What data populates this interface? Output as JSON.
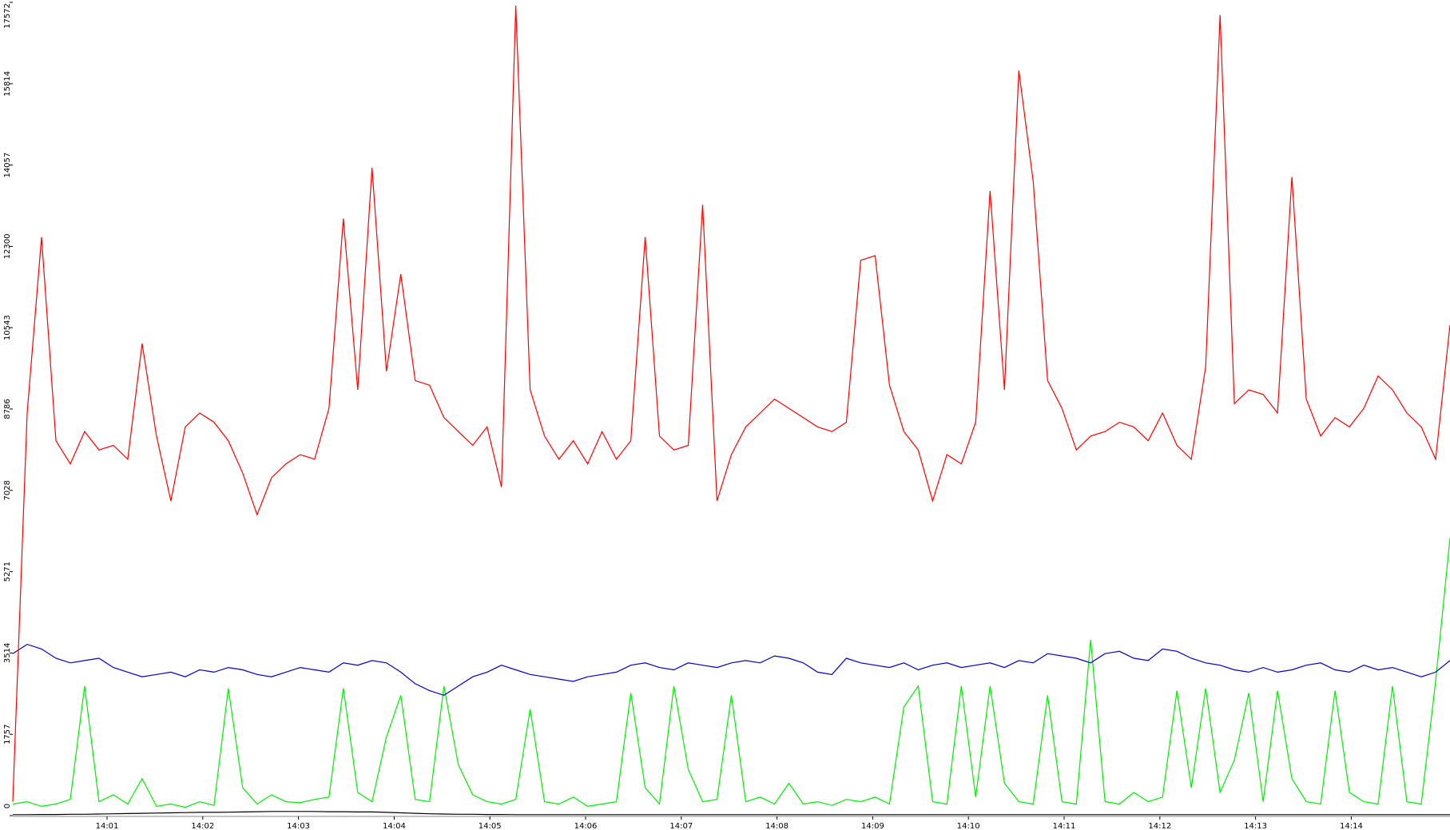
{
  "chart_data": {
    "type": "line",
    "ylim": [
      0,
      17572
    ],
    "yticks": [
      0,
      1757,
      3514,
      5271,
      7028,
      8786,
      10543,
      12300,
      14057,
      15814,
      17572
    ],
    "x_labels": [
      "14:01",
      "14:02",
      "14:03",
      "14:04",
      "14:05",
      "14:06",
      "14:07",
      "14:08",
      "14:09",
      "14:10",
      "14:11",
      "14:12",
      "14:13",
      "14:14"
    ],
    "series": [
      {
        "color": "#ff0000",
        "values": [
          300,
          8700,
          12500,
          8100,
          7600,
          8300,
          7900,
          8000,
          7700,
          10200,
          8200,
          6800,
          8400,
          8700,
          8500,
          8100,
          7400,
          6500,
          7300,
          7600,
          7800,
          7700,
          8800,
          12900,
          9200,
          14000,
          9600,
          11700,
          9400,
          9300,
          8600,
          8300,
          8000,
          8400,
          7100,
          17500,
          9200,
          8200,
          7700,
          8100,
          7600,
          8300,
          7700,
          8100,
          12500,
          8200,
          7900,
          8000,
          13200,
          6800,
          7800,
          8400,
          8700,
          9000,
          8800,
          8600,
          8400,
          8300,
          8500,
          12000,
          12100,
          9300,
          8300,
          7900,
          6800,
          7800,
          7600,
          8500,
          13500,
          9200,
          16100,
          13700,
          9400,
          8800,
          7900,
          8200,
          8300,
          8500,
          8400,
          8100,
          8700,
          8000,
          7700,
          9700,
          17300,
          8900,
          9200,
          9100,
          8700,
          13800,
          9000,
          8200,
          8600,
          8400,
          8800,
          9500,
          9200,
          8700,
          8400,
          7700,
          10600
        ]
      },
      {
        "color": "#0000cc",
        "values": [
          3500,
          3700,
          3600,
          3400,
          3300,
          3350,
          3400,
          3200,
          3100,
          3000,
          3050,
          3100,
          3000,
          3150,
          3100,
          3200,
          3150,
          3050,
          3000,
          3100,
          3200,
          3150,
          3100,
          3300,
          3250,
          3350,
          3300,
          3100,
          2850,
          2700,
          2600,
          2800,
          3000,
          3100,
          3250,
          3150,
          3050,
          3000,
          2950,
          2900,
          3000,
          3050,
          3100,
          3250,
          3300,
          3200,
          3150,
          3300,
          3250,
          3200,
          3300,
          3350,
          3300,
          3450,
          3400,
          3300,
          3100,
          3050,
          3400,
          3300,
          3250,
          3200,
          3300,
          3150,
          3250,
          3300,
          3200,
          3250,
          3300,
          3200,
          3350,
          3300,
          3500,
          3450,
          3400,
          3300,
          3500,
          3550,
          3400,
          3350,
          3600,
          3550,
          3400,
          3300,
          3250,
          3150,
          3100,
          3200,
          3100,
          3150,
          3250,
          3300,
          3150,
          3100,
          3250,
          3150,
          3200,
          3100,
          3000,
          3100,
          3350
        ]
      },
      {
        "color": "#00ee00",
        "values": [
          250,
          300,
          200,
          250,
          350,
          2800,
          300,
          450,
          250,
          800,
          200,
          250,
          180,
          300,
          220,
          2750,
          600,
          250,
          450,
          300,
          280,
          350,
          400,
          2750,
          500,
          300,
          1700,
          2600,
          350,
          300,
          2800,
          1100,
          450,
          300,
          250,
          350,
          2300,
          300,
          250,
          400,
          200,
          250,
          300,
          2650,
          600,
          250,
          2800,
          1000,
          300,
          350,
          2600,
          300,
          400,
          250,
          700,
          250,
          300,
          220,
          350,
          300,
          400,
          250,
          2350,
          2800,
          300,
          250,
          2800,
          400,
          2800,
          700,
          300,
          250,
          2600,
          300,
          250,
          3800,
          300,
          250,
          500,
          300,
          400,
          2700,
          600,
          2750,
          500,
          1200,
          2650,
          300,
          2700,
          800,
          300,
          250,
          2700,
          500,
          300,
          250,
          2800,
          300,
          250,
          2900,
          6000
        ]
      },
      {
        "color": "#000000",
        "values": [
          20,
          20,
          25,
          25,
          30,
          30,
          35,
          40,
          45,
          50,
          55,
          60,
          65,
          70,
          70,
          75,
          80,
          85,
          90,
          90,
          90,
          90,
          85,
          85,
          80,
          80,
          70,
          60,
          50,
          40,
          35,
          30,
          30,
          25,
          25,
          20,
          20,
          20,
          20,
          20,
          20,
          20,
          20,
          20,
          20,
          20,
          20,
          20,
          20,
          20,
          20,
          20,
          20,
          20,
          20,
          20,
          20,
          20,
          20,
          20,
          20,
          20,
          20,
          20,
          20,
          20,
          20,
          20,
          20,
          20,
          20,
          20,
          20,
          20,
          20,
          20,
          20,
          20,
          20,
          20,
          20,
          20,
          20,
          20,
          20,
          20,
          20,
          20,
          20,
          20,
          20,
          20,
          20,
          20,
          20,
          20,
          20,
          20,
          20,
          20,
          20
        ]
      }
    ]
  }
}
